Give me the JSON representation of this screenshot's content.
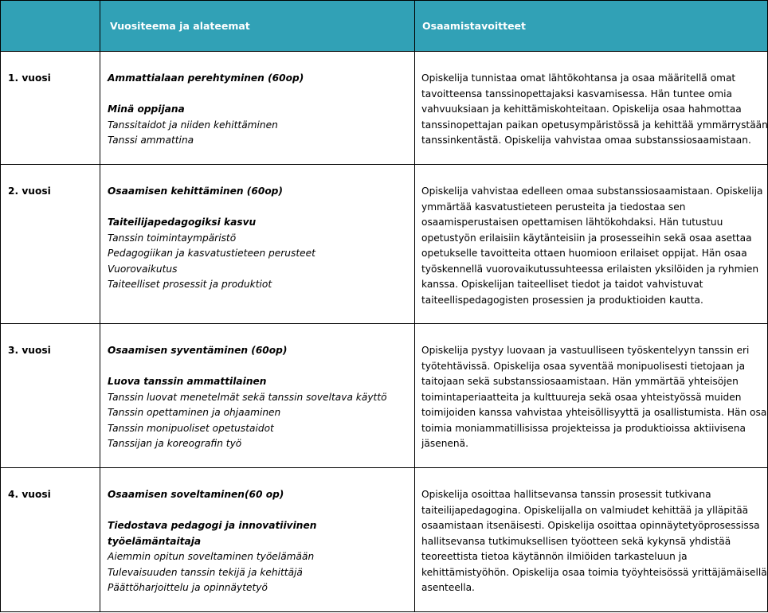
{
  "header": {
    "col1": "",
    "col2": "Vuositeema ja alateemat",
    "col3": "Osaamistavoitteet"
  },
  "colors": {
    "header_bg": "#31a1b6",
    "header_text": "#ffffff"
  },
  "rows": [
    {
      "year": "1. vuosi",
      "theme": "Ammattialaan perehtyminen (60op)",
      "subtheme": [
        "Minä oppijana"
      ],
      "items": [
        "Tanssitaidot ja niiden kehittäminen",
        "Tanssi ammattina"
      ],
      "goals": [
        "Opiskelija tunnistaa omat lähtökohtansa ja osaa määritellä omat",
        "tavoitteensa tanssinopettajaksi kasvamisessa. Hän tuntee omia",
        "vahvuuksiaan ja kehittämiskohteitaan. Opiskelija osaa hahmottaa",
        "tanssinopettajan paikan opetusympäristössä ja kehittää ymmärrystään",
        "tanssinkentästä. Opiskelija vahvistaa omaa substanssiosaamistaan."
      ]
    },
    {
      "year": "2. vuosi",
      "theme": "Osaamisen kehittäminen (60op)",
      "subtheme": [
        "Taiteilijapedagogiksi kasvu"
      ],
      "items": [
        "Tanssin toimintaympäristö",
        "Pedagogiikan ja kasvatustieteen perusteet",
        "Vuorovaikutus",
        "Taiteelliset prosessit ja produktiot"
      ],
      "goals": [
        "Opiskelija vahvistaa edelleen omaa substanssiosaamistaan. Opiskelija",
        "ymmärtää kasvatustieteen perusteita ja tiedostaa sen",
        "osaamisperustaisen opettamisen lähtökohdaksi. Hän tutustuu",
        "opetustyön erilaisiin käytänteisiin ja prosesseihin sekä osaa asettaa",
        "opetukselle tavoitteita ottaen huomioon erilaiset oppijat. Hän osaa",
        "työskennellä vuorovaikutussuhteessa erilaisten yksilöiden ja ryhmien",
        "kanssa. Opiskelijan taiteelliset tiedot ja taidot vahvistuvat",
        "taiteellispedagogisten prosessien ja produktioiden kautta."
      ]
    },
    {
      "year": "3. vuosi",
      "theme": "Osaamisen syventäminen (60op)",
      "subtheme": [
        "Luova tanssin ammattilainen"
      ],
      "items": [
        "Tanssin luovat menetelmät sekä tanssin soveltava käyttö",
        "Tanssin opettaminen ja ohjaaminen",
        "Tanssin monipuoliset opetustaidot",
        "Tanssijan ja koreografin työ"
      ],
      "goals": [
        "Opiskelija pystyy luovaan ja vastuulliseen työskentelyyn tanssin eri",
        "työtehtävissä. Opiskelija osaa syventää monipuolisesti tietojaan ja",
        "taitojaan sekä substanssiosaamistaan. Hän ymmärtää yhteisöjen",
        "toimintaperiaatteita ja kulttuureja sekä osaa yhteistyössä muiden",
        "toimijoiden kanssa vahvistaa yhteisöllisyyttä ja osallistumista. Hän osaa",
        "toimia moniammatillisissa projekteissa ja produktioissa aktiivisena",
        "jäsenenä."
      ]
    },
    {
      "year": "4. vuosi",
      "theme": "Osaamisen soveltaminen(60 op)",
      "subtheme": [
        "Tiedostava pedagogi ja innovatiivinen",
        "työelämäntaitaja"
      ],
      "items": [
        "Aiemmin opitun soveltaminen työelämään",
        "Tulevaisuuden tanssin tekijä ja kehittäjä",
        "Päättöharjoittelu ja opinnäytetyö"
      ],
      "goals": [
        "Opiskelija osoittaa hallitsevansa tanssin prosessit tutkivana",
        "taiteilijapedagogina. Opiskelijalla on valmiudet kehittää ja ylläpitää",
        "osaamistaan itsenäisesti. Opiskelija osoittaa opinnäytetyöprosessissa",
        "hallitsevansa tutkimuksellisen työotteen sekä kykynsä yhdistää",
        "teoreettista tietoa käytännön ilmiöiden tarkasteluun ja",
        "kehittämistyöhön. Opiskelija osaa toimia työyhteisössä yrittäjämäisellä",
        "asenteella."
      ]
    }
  ]
}
